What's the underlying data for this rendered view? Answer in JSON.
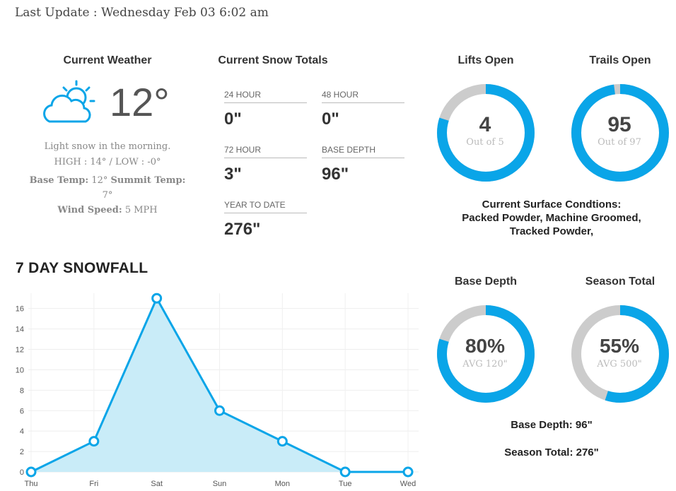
{
  "header": {
    "last_update": "Last Update : Wednesday Feb 03 6:02 am"
  },
  "current_weather": {
    "title": "Current Weather",
    "icon": "partly-cloudy-icon",
    "temp": "12°",
    "description": "Light snow in the morning.",
    "high_low": "HIGH : 14° / LOW : -0°",
    "base_temp_label": "Base Temp:",
    "base_temp": "12°",
    "summit_temp_label": "Summit Temp:",
    "summit_temp": "7°",
    "wind_label": "Wind Speed:",
    "wind": "5 MPH"
  },
  "snow_totals": {
    "title": "Current Snow Totals",
    "items": [
      {
        "label": "24 HOUR",
        "value": "0\""
      },
      {
        "label": "48 HOUR",
        "value": "0\""
      },
      {
        "label": "72 HOUR",
        "value": "3\""
      },
      {
        "label": "BASE DEPTH",
        "value": "96\""
      },
      {
        "label": "YEAR TO DATE",
        "value": "276\""
      }
    ]
  },
  "lifts": {
    "title": "Lifts Open",
    "value": "4",
    "sub": "Out of 5",
    "fraction": 0.8
  },
  "trails": {
    "title": "Trails Open",
    "value": "95",
    "sub": "Out of 97",
    "fraction": 0.979
  },
  "conditions": {
    "line1": "Current Surface Condtions:",
    "line2": "Packed Powder, Machine Groomed,",
    "line3": "Tracked Powder,"
  },
  "base_depth_gauge": {
    "title": "Base Depth",
    "value": "80%",
    "sub": "AVG 120\"",
    "fraction": 0.8
  },
  "season_total_gauge": {
    "title": "Season Total",
    "value": "55%",
    "sub": "AVG 500\"",
    "fraction": 0.55
  },
  "summary": {
    "base_depth": "Base Depth: 96\"",
    "season_total": "Season Total: 276\""
  },
  "colors": {
    "accent": "#0aa5e8",
    "ring_bg": "#cccccc",
    "fill": "#c9ecf8"
  },
  "chart_data": {
    "type": "area",
    "title": "7 DAY SNOWFALL",
    "categories": [
      "Thu",
      "Fri",
      "Sat",
      "Sun",
      "Mon",
      "Tue",
      "Wed"
    ],
    "values": [
      0,
      3,
      17,
      6,
      3,
      0,
      0
    ],
    "yticks": [
      0,
      2,
      4,
      6,
      8,
      10,
      12,
      14,
      16
    ],
    "ylim": [
      0,
      17.5
    ],
    "grid": true
  }
}
